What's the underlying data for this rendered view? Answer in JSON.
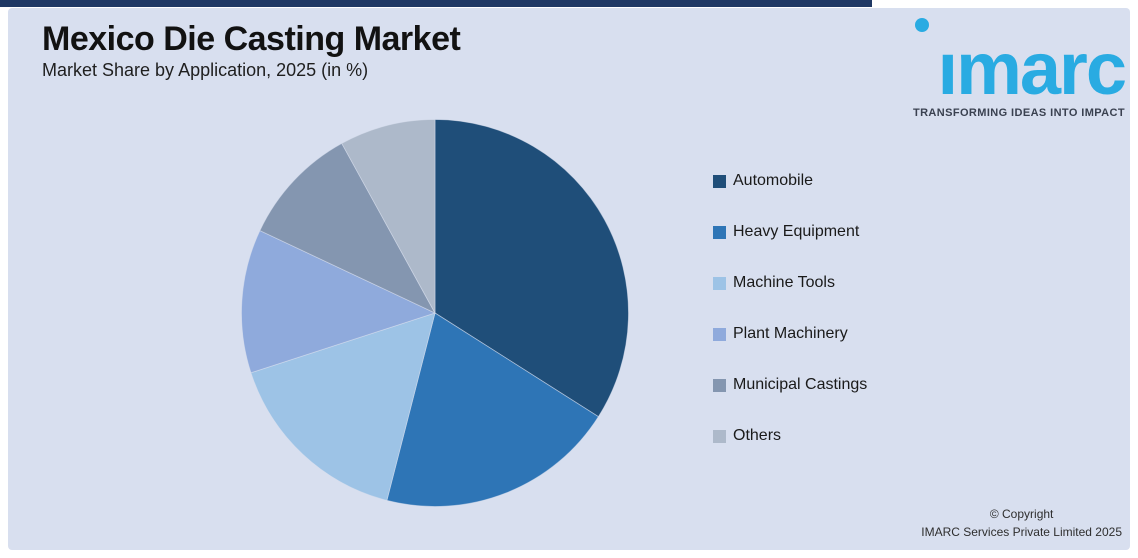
{
  "header": {
    "title": "Mexico Die Casting Market",
    "subtitle": "Market Share by Application, 2025 (in %)"
  },
  "logo": {
    "wordmark": "imarc",
    "tagline": "TRANSFORMING IDEAS INTO IMPACT",
    "brand_color": "#29ABE2"
  },
  "footer": {
    "copyright_line1": "© Copyright",
    "copyright_line2": "IMARC Services Private Limited 2025"
  },
  "colors": {
    "page_border": "#FFFFFF",
    "background_panel": "#D8DFEF",
    "top_accent_bar": "#1F3864"
  },
  "chart_data": {
    "type": "pie",
    "title": "Market Share by Application, 2025 (in %)",
    "unit": "%",
    "start_angle_deg": 0,
    "direction": "clockwise",
    "legend_position": "right",
    "data_labels_shown": false,
    "categories": [
      "Automobile",
      "Heavy Equipment",
      "Machine Tools",
      "Plant Machinery",
      "Municipal Castings",
      "Others"
    ],
    "values": [
      34,
      20,
      16,
      12,
      10,
      8
    ],
    "colors": [
      "#1F4E79",
      "#2E75B6",
      "#9DC3E6",
      "#8FAADC",
      "#8496B0",
      "#ADB9CA"
    ]
  }
}
